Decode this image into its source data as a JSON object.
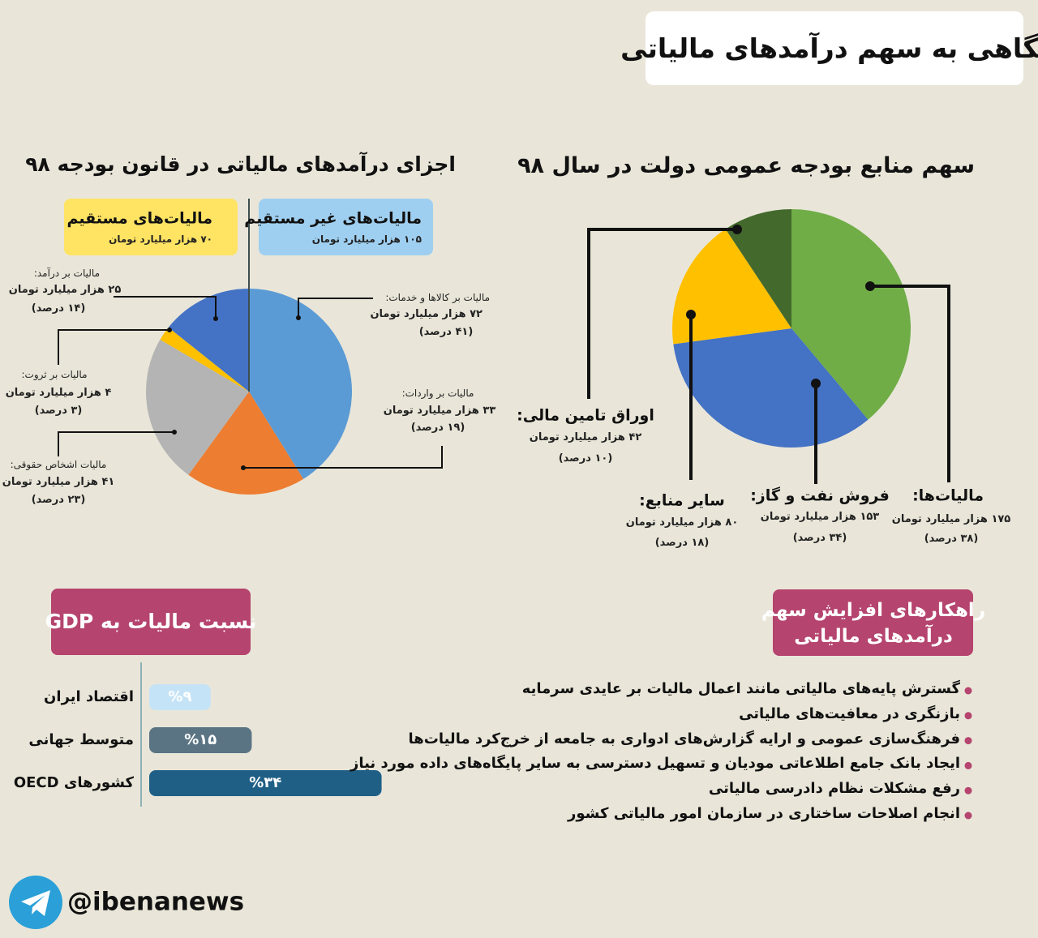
{
  "title": "نگاهی به سهم درآمدهای مالیاتی",
  "chart_data": [
    {
      "type": "pie",
      "title": "سهم منابع بودجه عمومی دولت در سال ۹۸",
      "categories": [
        "مالیات‌ها:",
        "فروش نفت و گاز:",
        "سایر منابع:",
        "اوراق تامین مالی:"
      ],
      "values": [
        175,
        153,
        80,
        42
      ],
      "value_labels": [
        "۱۷۵ هزار میلیارد تومان",
        "۱۵۳ هزار میلیارد تومان",
        "۸۰ هزار میلیارد تومان",
        "۴۲ هزار میلیارد تومان"
      ],
      "percents": [
        38,
        34,
        18,
        10
      ],
      "percent_labels": [
        "(۳۸ درصد)",
        "(۳۴ درصد)",
        "(۱۸ درصد)",
        "(۱۰ درصد)"
      ],
      "colors": [
        "#70ad47",
        "#4472c4",
        "#ffc000",
        "#43692c"
      ]
    },
    {
      "type": "pie",
      "title": "اجزای درآمدهای مالیاتی در قانون بودجه ۹۸",
      "groups": [
        {
          "name": "مالیات‌های غیر مستقیم",
          "value": 105,
          "value_label": "۱۰۵ هزار میلیارد تومان",
          "color": "#9fcff0"
        },
        {
          "name": "مالیات‌های مستقیم",
          "value": 70,
          "value_label": "۷۰ هزار میلیارد تومان",
          "color": "#ffe363"
        }
      ],
      "categories": [
        "مالیات بر کالاها و خدمات:",
        "مالیات بر واردات:",
        "مالیات اشخاص حقوقی:",
        "مالیات بر ثروت:",
        "مالیات بر درآمد:"
      ],
      "values": [
        72,
        33,
        41,
        4,
        25
      ],
      "value_labels": [
        "۷۲ هزار میلیارد تومان",
        "۳۳ هزار میلیارد تومان",
        "۴۱ هزار میلیارد تومان",
        "۴ هزار میلیارد تومان",
        "۲۵ هزار میلیارد تومان"
      ],
      "percents": [
        41,
        19,
        23,
        3,
        14
      ],
      "percent_labels": [
        "(۴۱ درصد)",
        "(۱۹ درصد)",
        "(۲۳ درصد)",
        "(۳ درصد)",
        "(۱۴ درصد)"
      ],
      "colors": [
        "#5b9bd5",
        "#ed7d31",
        "#b4b4b4",
        "#ffc000",
        "#4472c4"
      ]
    },
    {
      "type": "bar",
      "orientation": "horizontal",
      "title": "نسبت مالیات به GDP",
      "categories": [
        "اقتصاد ایران",
        "متوسط جهانی",
        "کشورهای OECD"
      ],
      "values": [
        9,
        15,
        34
      ],
      "value_labels": [
        "%۹",
        "%۱۵",
        "%۳۴"
      ],
      "colors": [
        "#c5e3f6",
        "#5a7484",
        "#1f5f86"
      ],
      "xlim": [
        0,
        35
      ]
    }
  ],
  "strategies": {
    "title_lines": [
      "راهکارهای افزایش سهم",
      "درآمدهای مالیاتی"
    ],
    "items": [
      "گسترش پایه‌های مالیاتی مانند اعمال مالیات بر عایدی سرمایه",
      "بازنگری در معافیت‌های مالیاتی",
      "فرهنگ‌سازی عمومی و ارایه گزارش‌های ادواری به جامعه از خرج‌کرد مالیات‌ها",
      "ایجاد بانک جامع اطلاعاتی مودیان و تسهیل دسترسی به سایر پایگاه‌های داده مورد نیاز",
      "رفع مشکلات نظام دادرسی مالیاتی",
      "انجام اصلاحات ساختاری در سازمان امور مالیاتی کشور"
    ]
  },
  "footer": {
    "handle": "@ibenanews"
  }
}
